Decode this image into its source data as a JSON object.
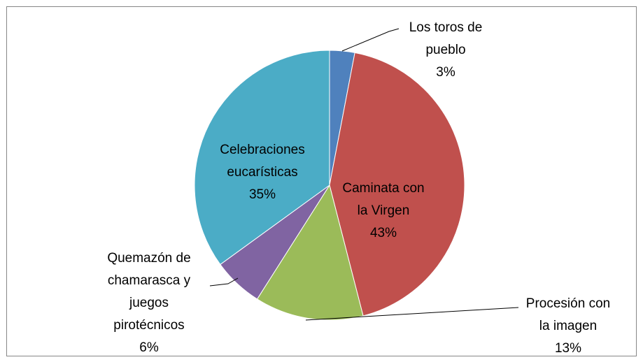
{
  "chart_data": {
    "type": "pie",
    "categories": [
      "Los toros de pueblo",
      "Caminata con la Virgen",
      "Procesión con la imagen",
      "Quemazón de chamarasca y juegos pirotécnicos",
      "Celebraciones eucarísticas"
    ],
    "values": [
      3,
      43,
      13,
      6,
      35
    ],
    "value_labels": [
      "3%",
      "43%",
      "13%",
      "6%",
      "35%"
    ],
    "colors": [
      "#4f81bd",
      "#c0504d",
      "#9bbb59",
      "#8064a2",
      "#4bacc6"
    ]
  }
}
